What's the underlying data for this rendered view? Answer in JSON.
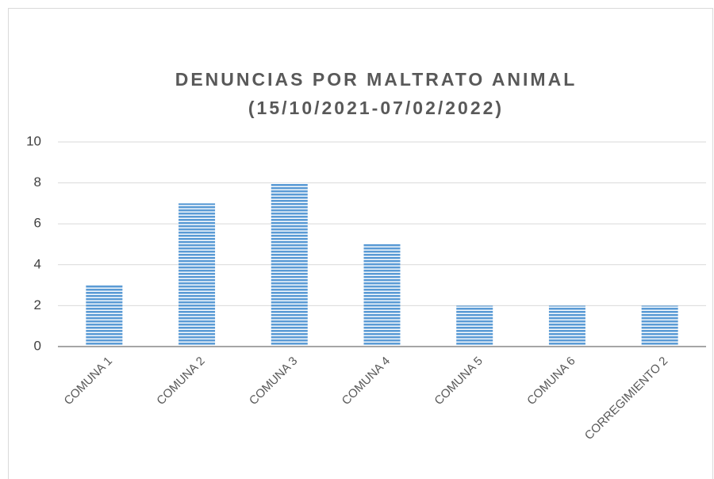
{
  "chart_data": {
    "type": "bar",
    "title": [
      "DENUNCIAS POR MALTRATO ANIMAL",
      "(15/10/2021-07/02/2022)"
    ],
    "categories": [
      "COMUNA 1",
      "COMUNA 2",
      "COMUNA 3",
      "COMUNA 4",
      "COMUNA 5",
      "COMUNA 6",
      "CORREGIMIENTO 2"
    ],
    "values": [
      3,
      7,
      8,
      5,
      2,
      2,
      2
    ],
    "color": "#5b9bd5",
    "ylim": [
      0,
      10
    ],
    "yticks": [
      0,
      2,
      4,
      6,
      8,
      10
    ],
    "grid": true
  }
}
